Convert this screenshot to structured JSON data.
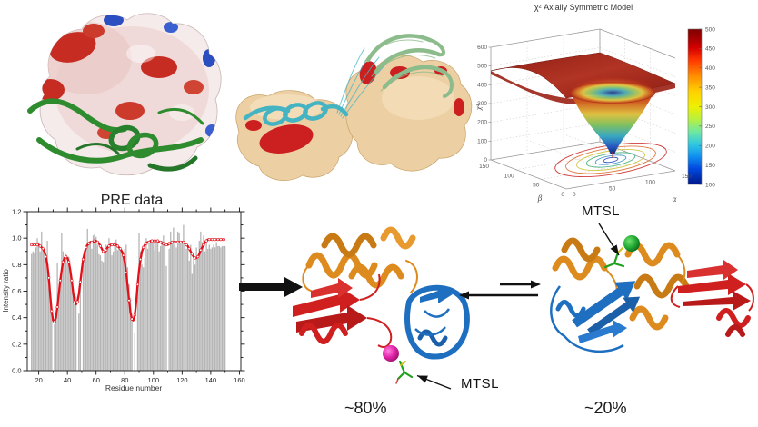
{
  "palette": {
    "figure_bg": "#ffffff",
    "pre_bar": "#b5b5b5",
    "pre_line": "#e3101a",
    "ribbon_green": "#2e8b2e",
    "surface_tan": "#eccfa2",
    "ribbon_cyan": "#45b4c2",
    "ribbon_pale_green": "#8cbc8c",
    "patch_red": "#c62c22",
    "patch_blue": "#2b4fc0",
    "domain_orange": "#dd8a1e",
    "domain_red": "#cf1f1f",
    "domain_blue": "#1f6fc0",
    "sphere_magenta": "#d8169a",
    "sphere_green": "#22aa33",
    "mtsl_stick_green": "#1fa01f",
    "arrow_black": "#111111"
  },
  "labels": {
    "mtsl_left": "MTSL",
    "mtsl_right": "MTSL",
    "population_left": "~80%",
    "population_right": "~20%"
  },
  "chart_data": [
    {
      "type": "bar",
      "title": "PRE data",
      "xlabel": "Residue number",
      "ylabel": "Intensity ratio",
      "xlim": [
        12,
        161
      ],
      "ylim": [
        0,
        1.2
      ],
      "xticks": [
        20,
        40,
        60,
        80,
        100,
        120,
        140,
        160
      ],
      "yticks": [
        0.0,
        0.2,
        0.4,
        0.6,
        0.8,
        1.0,
        1.2
      ],
      "ytick_labels": [
        "0.0",
        "0.2",
        "0.4",
        "0.6",
        "0.8",
        "1.0",
        "1.2"
      ],
      "bar_color": "#b5b5b5",
      "line_color": "#e3101a",
      "start_residue": 15,
      "bars": [
        0.88,
        0.9,
        0.89,
        0.93,
        1.0,
        0.97,
        0.9,
        1.05,
        0.92,
        0.9,
        0.88,
        0.98,
        0.75,
        0.6,
        0.45,
        null,
        0.35,
        0.42,
        0.81,
        0.6,
        0.68,
        1.04,
        0.9,
        0.84,
        0.88,
        0.82,
        0.86,
        0.78,
        0.7,
        0.62,
        0.5,
        0.56,
        null,
        0.43,
        0.65,
        null,
        0.8,
        0.86,
        0.92,
        1.07,
        0.95,
        0.98,
        0.92,
        1.02,
        1.03,
        1.01,
        0.95,
        0.88,
        0.87,
        0.83,
        0.82,
        0.88,
        0.95,
        0.92,
        1.0,
        0.96,
        0.87,
        0.9,
        0.97,
        0.99,
        0.91,
        0.94,
        0.93,
        0.89,
        0.9,
        0.92,
        0.95,
        0.78,
        0.65,
        0.55,
        0.38,
        null,
        0.28,
        null,
        0.62,
        1.04,
        0.9,
        0.8,
        0.78,
        0.85,
        1.0,
        0.92,
        0.96,
        0.98,
        0.96,
        0.97,
        0.91,
        0.98,
        0.96,
        0.9,
        0.94,
        0.98,
        1.02,
        0.95,
        0.79,
        null,
        0.92,
        1.05,
        0.97,
        1.08,
        0.95,
        0.93,
        1.05,
        1.04,
        0.96,
        0.98,
        1.1,
        0.97,
        0.92,
        0.95,
        0.83,
        0.95,
        0.73,
        0.85,
        0.8,
        0.93,
        0.85,
        0.98,
        1.05,
        0.97,
        1.02,
        0.9,
        0.96,
        0.92,
        0.95,
        0.92,
        0.93,
        0.95,
        0.93,
        0.97,
        0.94,
        0.94,
        0.93,
        0.94,
        0.94,
        0.94
      ],
      "fit": [
        0.95,
        0.95,
        0.95,
        0.95,
        0.95,
        0.95,
        0.94,
        0.93,
        0.92,
        0.9,
        0.86,
        0.8,
        0.7,
        0.57,
        0.45,
        0.38,
        0.37,
        0.4,
        0.48,
        0.58,
        0.68,
        0.76,
        0.82,
        0.85,
        0.86,
        0.85,
        0.82,
        0.76,
        0.68,
        0.59,
        0.52,
        0.5,
        0.52,
        0.58,
        0.67,
        0.76,
        0.84,
        0.89,
        0.93,
        0.95,
        0.96,
        0.97,
        0.97,
        0.97,
        0.98,
        0.98,
        0.97,
        0.96,
        0.94,
        0.92,
        0.9,
        0.89,
        0.91,
        0.93,
        0.94,
        0.95,
        0.95,
        0.95,
        0.95,
        0.95,
        0.94,
        0.93,
        0.92,
        0.9,
        0.87,
        0.82,
        0.74,
        0.64,
        0.53,
        0.44,
        0.39,
        0.38,
        0.42,
        0.52,
        0.65,
        0.76,
        0.84,
        0.9,
        0.93,
        0.95,
        0.96,
        0.97,
        0.97,
        0.98,
        0.98,
        0.98,
        0.98,
        0.98,
        0.98,
        0.97,
        0.97,
        0.96,
        0.96,
        0.95,
        0.95,
        0.95,
        0.96,
        0.96,
        0.97,
        0.97,
        0.97,
        0.97,
        0.97,
        0.97,
        0.97,
        0.97,
        0.97,
        0.96,
        0.95,
        0.94,
        0.92,
        0.9,
        0.88,
        0.86,
        0.85,
        0.85,
        0.86,
        0.88,
        0.91,
        0.93,
        0.95,
        0.97,
        0.98,
        0.99,
        0.99,
        0.99,
        0.99,
        0.99,
        0.99,
        0.99,
        0.99,
        0.99,
        0.99,
        0.99,
        0.99,
        0.99
      ]
    },
    {
      "type": "surface",
      "title": "χ² Axially Symmetric Model",
      "xlabel": "α",
      "ylabel": "β",
      "zlabel": "χ²",
      "xticks": [
        0,
        50,
        100,
        150
      ],
      "yticks": [
        0,
        50,
        100,
        150
      ],
      "zticks": [
        0,
        100,
        200,
        300,
        400,
        500,
        600
      ],
      "zlim": [
        0,
        600
      ],
      "colorbar_range": [
        100,
        500
      ],
      "colorbar_ticks": [
        100,
        150,
        200,
        250,
        300,
        350,
        400,
        450,
        500
      ],
      "surface_summary": "Flat plateau at chi-square ~480-500 with a steep funnel descending to a minimum ~100 near alpha~60, beta~70; contour projection drawn on the base plane"
    }
  ]
}
